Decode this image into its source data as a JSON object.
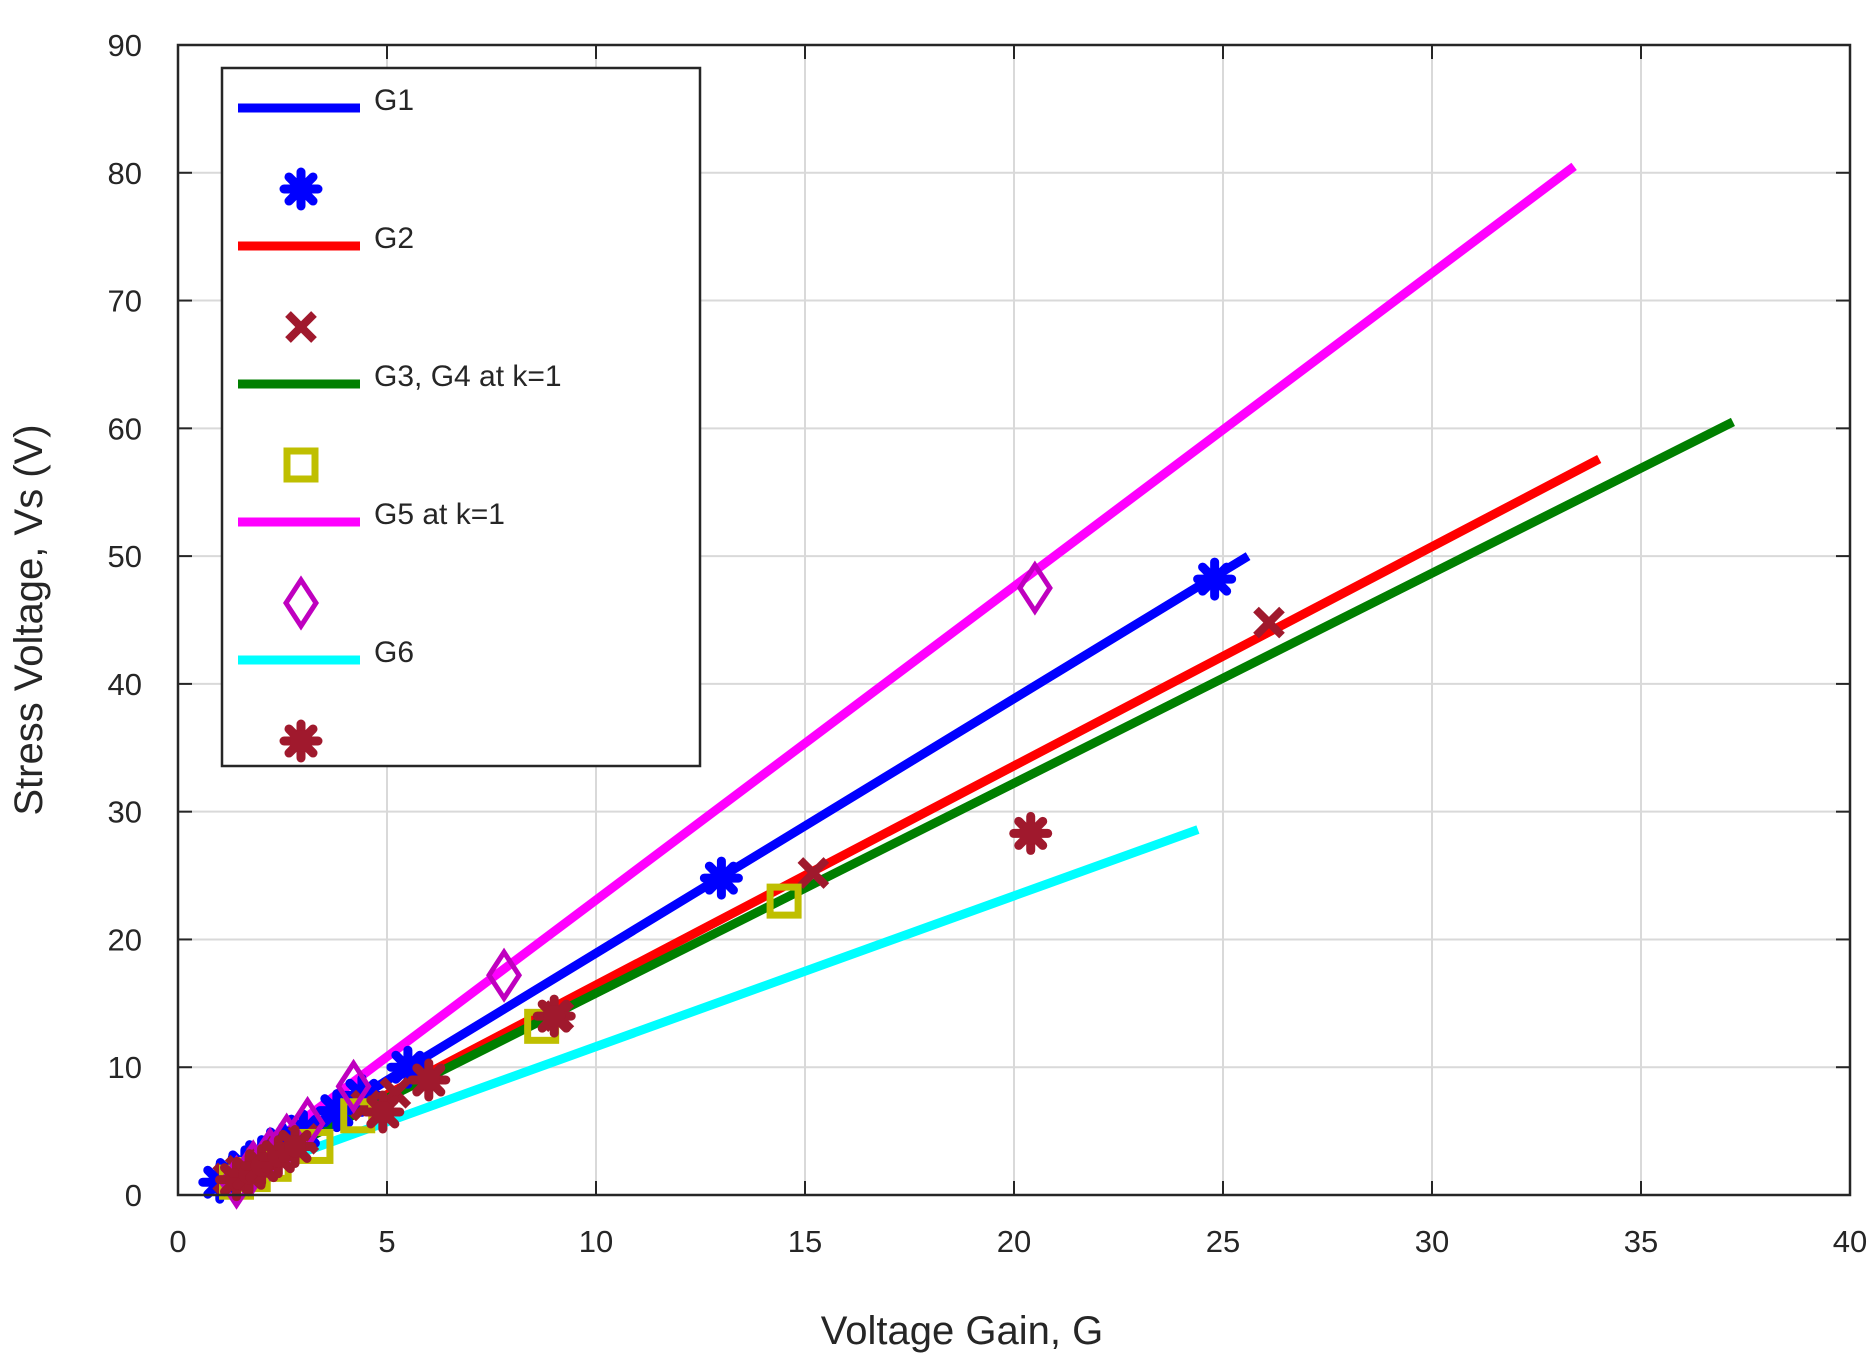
{
  "chart_data": {
    "type": "line",
    "title": "",
    "xlabel": "Voltage Gain, G",
    "ylabel": "Stress Voltage, Vs (V)",
    "xlim": [
      0,
      40
    ],
    "ylim": [
      0,
      90
    ],
    "xticks": [
      0,
      5,
      10,
      15,
      20,
      25,
      30,
      35,
      40
    ],
    "yticks": [
      0,
      10,
      20,
      30,
      40,
      50,
      60,
      70,
      80,
      90
    ],
    "grid": true,
    "legend_position": "top-left",
    "series": [
      {
        "name": "G1",
        "kind": "line",
        "color": "#0000ff",
        "x": [
          1,
          25.6
        ],
        "y": [
          1,
          50
        ]
      },
      {
        "name": "",
        "kind": "marker",
        "marker": "asterisk",
        "color": "#0000ff",
        "x": [
          1.0,
          1.3,
          1.6,
          2.0,
          2.5,
          3.0,
          3.8,
          4.4,
          5.5,
          13.0,
          24.8
        ],
        "y": [
          1.0,
          1.6,
          2.2,
          3.0,
          4.0,
          5.0,
          6.6,
          7.8,
          10.0,
          24.8,
          48.2
        ]
      },
      {
        "name": "G2",
        "kind": "line",
        "color": "#ff0000",
        "x": [
          1,
          34
        ],
        "y": [
          1,
          57.6
        ]
      },
      {
        "name": "",
        "kind": "marker",
        "marker": "x",
        "color": "#a0192d",
        "x": [
          1.2,
          1.5,
          2.0,
          2.5,
          3.0,
          4.5,
          5.2,
          9.1,
          15.2,
          26.1
        ],
        "y": [
          1.3,
          1.9,
          2.8,
          3.6,
          4.4,
          7.0,
          8.0,
          14.0,
          25.2,
          44.8
        ]
      },
      {
        "name": "G3, G4 at k=1",
        "kind": "line",
        "color": "#007f00",
        "x": [
          1,
          37.2
        ],
        "y": [
          1,
          60.5
        ]
      },
      {
        "name": "",
        "kind": "marker",
        "marker": "square",
        "color": "#bfbf00",
        "x": [
          1.4,
          1.8,
          2.3,
          3.3,
          4.3,
          8.7,
          14.5
        ],
        "y": [
          1.0,
          1.6,
          2.4,
          3.8,
          6.2,
          13.2,
          23.0
        ]
      },
      {
        "name": "G5 at k=1",
        "kind": "line",
        "color": "#ff00ff",
        "x": [
          1,
          33.4
        ],
        "y": [
          1,
          80.5
        ]
      },
      {
        "name": "",
        "kind": "marker",
        "marker": "diamond",
        "color": "#bf00bf",
        "x": [
          1.4,
          1.8,
          2.2,
          2.6,
          3.1,
          4.2,
          7.8,
          20.5
        ],
        "y": [
          1.0,
          2.2,
          3.2,
          4.3,
          5.6,
          8.5,
          17.2,
          47.5
        ]
      },
      {
        "name": "G6",
        "kind": "line",
        "color": "#00ffff",
        "x": [
          1,
          24.4
        ],
        "y": [
          1,
          28.6
        ]
      },
      {
        "name": "",
        "kind": "marker",
        "marker": "asterisk",
        "color": "#a0192d",
        "x": [
          1.4,
          1.7,
          2.0,
          2.4,
          2.8,
          4.9,
          6.0,
          9.0,
          20.4
        ],
        "y": [
          1.2,
          1.7,
          2.3,
          3.0,
          3.8,
          6.5,
          9.0,
          14.0,
          28.3
        ]
      }
    ]
  }
}
